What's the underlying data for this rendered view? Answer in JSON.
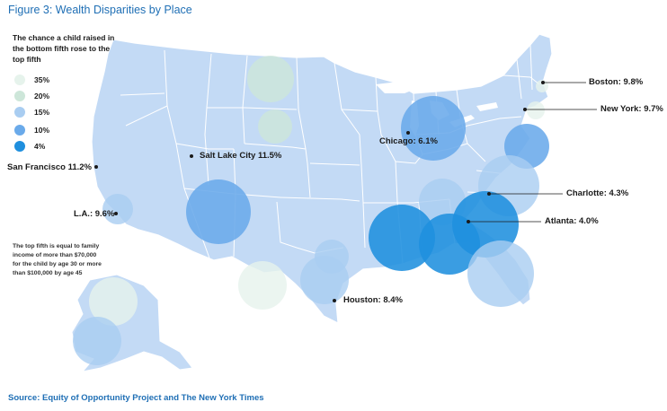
{
  "title": "Figure 3: Wealth Disparities by Place",
  "legend": {
    "title": "The chance a child raised in the bottom fifth rose to the top fifth",
    "items": [
      {
        "label": "35%",
        "color": "#e6f3ec"
      },
      {
        "label": "20%",
        "color": "#cde6d9"
      },
      {
        "label": "15%",
        "color": "#a9cdf1"
      },
      {
        "label": "10%",
        "color": "#6aaaea"
      },
      {
        "label": "4%",
        "color": "#1f8fde"
      }
    ]
  },
  "note": "The top fifth is equal to family income of more than $70,000 for the child by age 30 or more than $100,000 by age 45",
  "cities": [
    {
      "label": "Boston: 9.8%"
    },
    {
      "label": "New York: 9.7%"
    },
    {
      "label": "Chicago: 6.1%"
    },
    {
      "label": "Salt Lake City 11.5%"
    },
    {
      "label": "San Francisco 11.2%"
    },
    {
      "label": "L.A.: 9.6%"
    },
    {
      "label": "Charlotte: 4.3%"
    },
    {
      "label": "Atlanta: 4.0%"
    },
    {
      "label": "Houston: 8.4%"
    }
  ],
  "source": "Source: Equity of Opportunity Project and The New York Times",
  "colors": {
    "map_fill": "#c3daf5",
    "title": "#1f6fb5"
  }
}
